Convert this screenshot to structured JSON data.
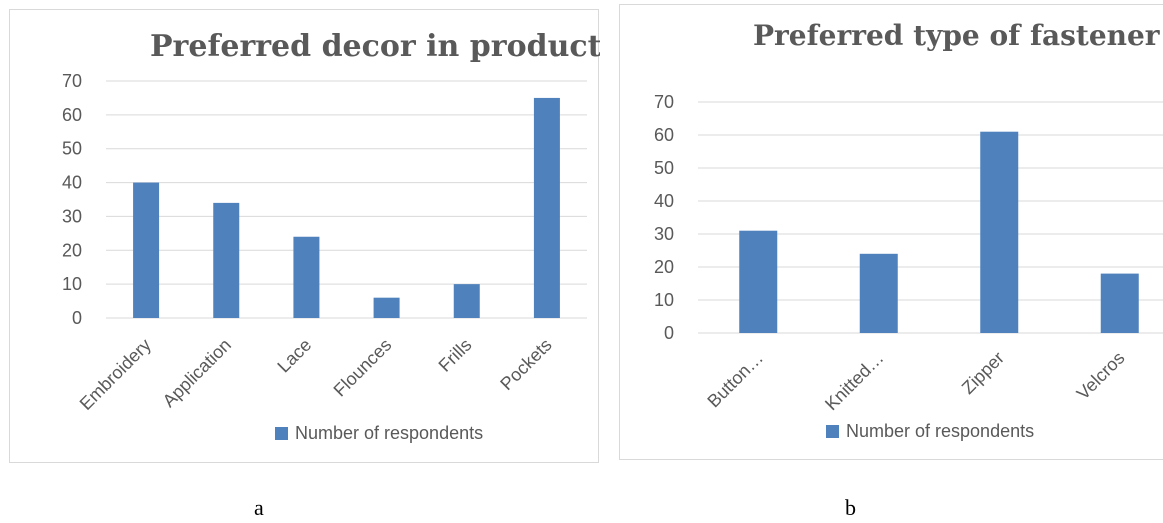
{
  "chart_data": [
    {
      "type": "bar",
      "title": "Preferred decor in products",
      "categories": [
        "Embroidery",
        "Application",
        "Lace",
        "Flounces",
        "Frills",
        "Pockets"
      ],
      "series": [
        {
          "name": "Number of respondents",
          "values": [
            40,
            34,
            24,
            6,
            10,
            65
          ]
        }
      ],
      "ylim": [
        0,
        70
      ],
      "yticks": [
        0,
        10,
        20,
        30,
        40,
        50,
        60,
        70
      ],
      "grid": true,
      "legend": "bottom",
      "color": "#4f81bd",
      "caption": "a"
    },
    {
      "type": "bar",
      "title": "Preferred type of fastener",
      "categories": [
        "Button…",
        "Knitted…",
        "Zipper",
        "Velcros"
      ],
      "series": [
        {
          "name": "Number of respondents",
          "values": [
            31,
            24,
            61,
            18
          ]
        }
      ],
      "ylim": [
        0,
        70
      ],
      "yticks": [
        0,
        10,
        20,
        30,
        40,
        50,
        60,
        70
      ],
      "grid": true,
      "legend": "bottom",
      "color": "#4f81bd",
      "caption": "b"
    }
  ]
}
